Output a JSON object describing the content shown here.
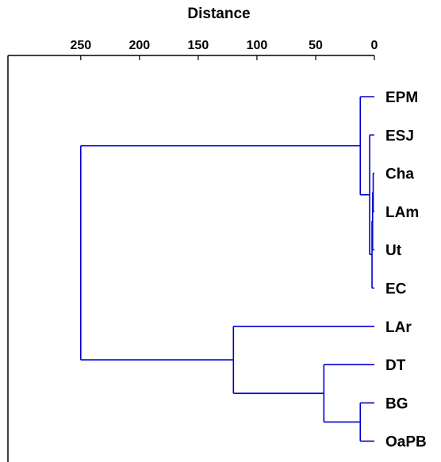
{
  "chart_data": {
    "type": "dendrogram",
    "orientation": "horizontal",
    "title": "Distance",
    "xlabel": "Distance",
    "xlim": [
      0,
      312
    ],
    "x_reversed": true,
    "x_ticks": [
      250,
      200,
      150,
      100,
      50,
      0
    ],
    "x_tick_labels": [
      "250",
      "200",
      "150",
      "100",
      "50",
      "0"
    ],
    "leaves": [
      "EPM",
      "ESJ",
      "Cha",
      "LAm",
      "Ut",
      "EC",
      "LAr",
      "DT",
      "BG",
      "OaPB"
    ],
    "merges": [
      {
        "left": "Cha",
        "right": "LAm",
        "height": 1.0
      },
      {
        "left": "Cha+LAm",
        "right": "Ut",
        "height": 1.5
      },
      {
        "left": "Cha+LAm+Ut",
        "right": "EC",
        "height": 2.0
      },
      {
        "left": "ESJ",
        "right": "Cha+LAm+Ut+EC",
        "height": 4.0
      },
      {
        "left": "EPM",
        "right": "ESJ+Cha+LAm+Ut+EC",
        "height": 12.0
      },
      {
        "left": "BG",
        "right": "OaPB",
        "height": 12.0
      },
      {
        "left": "DT",
        "right": "BG+OaPB",
        "height": 43.0
      },
      {
        "left": "LAr",
        "right": "DT+BG+OaPB",
        "height": 120.0
      },
      {
        "left": "EPM+ESJ+Cha+LAm+Ut+EC",
        "right": "LAr+DT+BG+OaPB",
        "height": 250.0
      }
    ],
    "line_color": "#0000cc",
    "axis_color": "#000000"
  }
}
